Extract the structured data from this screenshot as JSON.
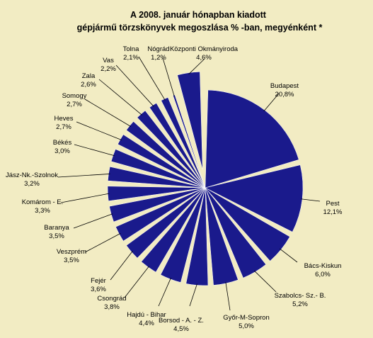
{
  "chart_data": {
    "type": "pie",
    "title": "A  2008. január hónapban kiadott",
    "subtitle": "gépjármű törzskönyvek megoszlása % -ban, megyénként *",
    "slices": [
      {
        "label": "Budapest",
        "value": 20.8,
        "value_label": "20,8%"
      },
      {
        "label": "Pest",
        "value": 12.1,
        "value_label": "12,1%"
      },
      {
        "label": "Bács-Kiskun",
        "value": 6.0,
        "value_label": "6,0%"
      },
      {
        "label": "Szabolcs- Sz.- B.",
        "value": 5.2,
        "value_label": "5,2%"
      },
      {
        "label": "Győr-M-Sopron",
        "value": 5.0,
        "value_label": "5,0%"
      },
      {
        "label": "Borsod - A. - Z.",
        "value": 4.5,
        "value_label": "4,5%"
      },
      {
        "label": "Hajdú - Bihar",
        "value": 4.4,
        "value_label": "4,4%"
      },
      {
        "label": "Csongrád",
        "value": 3.8,
        "value_label": "3,8%"
      },
      {
        "label": "Fejér",
        "value": 3.6,
        "value_label": "3,6%"
      },
      {
        "label": "Veszprém",
        "value": 3.5,
        "value_label": "3,5%"
      },
      {
        "label": "Baranya",
        "value": 3.5,
        "value_label": "3,5%"
      },
      {
        "label": "Komárom - E.",
        "value": 3.3,
        "value_label": "3,3%"
      },
      {
        "label": "Jász-Nk.-Szolnok",
        "value": 3.2,
        "value_label": "3,2%"
      },
      {
        "label": "Békés",
        "value": 3.0,
        "value_label": "3,0%"
      },
      {
        "label": "Heves",
        "value": 2.7,
        "value_label": "2,7%"
      },
      {
        "label": "Somogy",
        "value": 2.7,
        "value_label": "2,7%"
      },
      {
        "label": "Zala",
        "value": 2.6,
        "value_label": "2,6%"
      },
      {
        "label": "Vas",
        "value": 2.2,
        "value_label": "2,2%"
      },
      {
        "label": "Tolna",
        "value": 2.1,
        "value_label": "2,1%"
      },
      {
        "label": "Nógrád",
        "value": 1.2,
        "value_label": "1,2%"
      },
      {
        "label": "Központi Okmányiroda",
        "value": 4.6,
        "value_label": "4,6%"
      }
    ],
    "colors": {
      "slice_fill": "#1a1a8c",
      "slice_stroke": "#ffffff",
      "background": "#f2ecc3",
      "leader_line": "#000000"
    },
    "legend": "none",
    "exploded_slice": "Központi Okmányiroda"
  }
}
